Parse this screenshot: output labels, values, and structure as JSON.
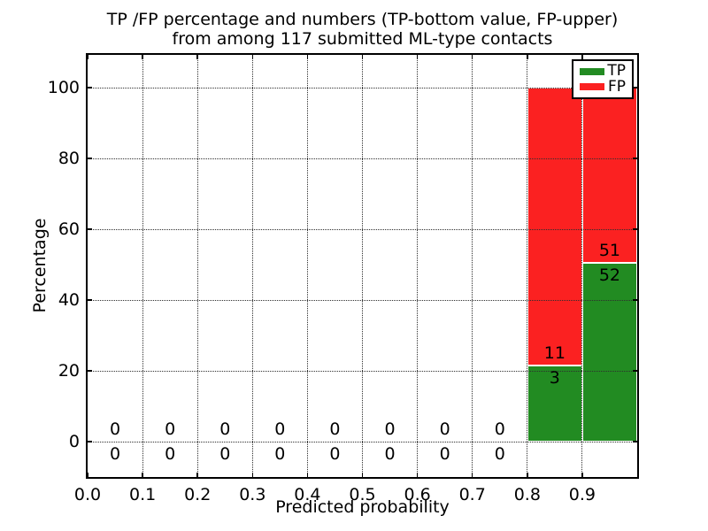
{
  "figure": {
    "title_line1": "TP /FP percentage and numbers (TP-bottom value, FP-upper)",
    "title_line2": "from among 117 submitted ML-type contacts"
  },
  "axes": {
    "xlabel": "Predicted probability",
    "ylabel": "Percentage",
    "x_tick_labels": [
      "0.0",
      "0.1",
      "0.2",
      "0.3",
      "0.4",
      "0.5",
      "0.6",
      "0.7",
      "0.8",
      "0.9"
    ],
    "x_tick_values": [
      0,
      0.1,
      0.2,
      0.3,
      0.4,
      0.5,
      0.6,
      0.7,
      0.8,
      0.9
    ],
    "y_tick_labels": [
      "0",
      "20",
      "40",
      "60",
      "80",
      "100"
    ],
    "y_tick_values": [
      0,
      20,
      40,
      60,
      80,
      100
    ],
    "xlim": [
      0,
      1
    ],
    "ylim": [
      -10,
      109
    ],
    "grid": "dotted"
  },
  "legend": {
    "position": "upper-right",
    "items": [
      {
        "label": "TP",
        "color": "#228b22"
      },
      {
        "label": "FP",
        "color": "#fb2121"
      }
    ]
  },
  "colors": {
    "tp": "#228b22",
    "fp": "#fb2121",
    "grid": "#2e2e2e",
    "text": "#000000",
    "background": "#ffffff"
  },
  "chart_data": {
    "type": "bar",
    "stacked": true,
    "title": "TP /FP percentage and numbers (TP-bottom value, FP-upper) from among 117 submitted ML-type contacts",
    "xlabel": "Predicted probability",
    "ylabel": "Percentage",
    "xlim": [
      0,
      1
    ],
    "ylim": [
      -10,
      109
    ],
    "legend_position": "upper right",
    "grid": true,
    "total_submitted_contacts": 117,
    "bin_width": 0.1,
    "note": "Bars show TP% (green, bottom) and FP% (red, upper) of contacts per predicted-probability bin; labels are raw counts (TP below boundary, FP above)",
    "bins": [
      {
        "x0": 0.0,
        "x1": 0.1,
        "tp": 0,
        "fp": 0,
        "tp_pct": 0,
        "fp_pct": 0
      },
      {
        "x0": 0.1,
        "x1": 0.2,
        "tp": 0,
        "fp": 0,
        "tp_pct": 0,
        "fp_pct": 0
      },
      {
        "x0": 0.2,
        "x1": 0.3,
        "tp": 0,
        "fp": 0,
        "tp_pct": 0,
        "fp_pct": 0
      },
      {
        "x0": 0.3,
        "x1": 0.4,
        "tp": 0,
        "fp": 0,
        "tp_pct": 0,
        "fp_pct": 0
      },
      {
        "x0": 0.4,
        "x1": 0.5,
        "tp": 0,
        "fp": 0,
        "tp_pct": 0,
        "fp_pct": 0
      },
      {
        "x0": 0.5,
        "x1": 0.6,
        "tp": 0,
        "fp": 0,
        "tp_pct": 0,
        "fp_pct": 0
      },
      {
        "x0": 0.6,
        "x1": 0.7,
        "tp": 0,
        "fp": 0,
        "tp_pct": 0,
        "fp_pct": 0
      },
      {
        "x0": 0.7,
        "x1": 0.8,
        "tp": 0,
        "fp": 0,
        "tp_pct": 0,
        "fp_pct": 0
      },
      {
        "x0": 0.8,
        "x1": 0.9,
        "tp": 3,
        "fp": 11,
        "tp_pct": 21.43,
        "fp_pct": 78.57
      },
      {
        "x0": 0.9,
        "x1": 1.0,
        "tp": 52,
        "fp": 51,
        "tp_pct": 50.49,
        "fp_pct": 49.51
      }
    ]
  }
}
